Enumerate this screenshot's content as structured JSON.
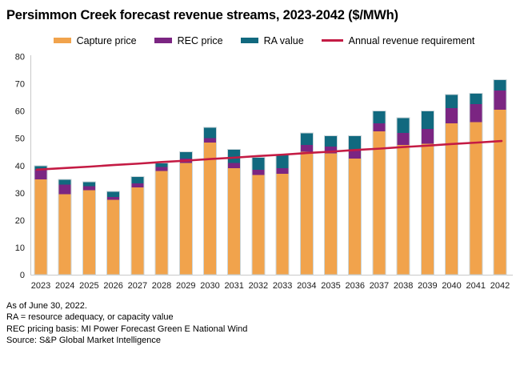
{
  "title": "Persimmon Creek forecast revenue streams, 2023-2042 ($/MWh)",
  "legend": {
    "items": [
      {
        "label": "Capture price",
        "color": "#F1A34C",
        "type": "box"
      },
      {
        "label": "REC price",
        "color": "#7B2582",
        "type": "box"
      },
      {
        "label": "RA value",
        "color": "#11697F",
        "type": "box"
      },
      {
        "label": "Annual revenue requirement",
        "color": "#C41B44",
        "type": "line"
      }
    ]
  },
  "chart_data": {
    "type": "bar",
    "subtype": "stacked-bars-with-line-overlay",
    "title": "Persimmon Creek forecast revenue streams, 2023-2042 ($/MWh)",
    "xlabel": "",
    "ylabel": "",
    "ylim": [
      0,
      80
    ],
    "yticks": [
      0,
      10,
      20,
      30,
      40,
      50,
      60,
      70,
      80
    ],
    "grid": false,
    "legend_position": "top",
    "categories": [
      "2023",
      "2024",
      "2025",
      "2026",
      "2027",
      "2028",
      "2029",
      "2030",
      "2031",
      "2032",
      "2033",
      "2034",
      "2035",
      "2036",
      "2037",
      "2038",
      "2039",
      "2040",
      "2041",
      "2042"
    ],
    "series": [
      {
        "name": "Capture price",
        "color": "#F1A34C",
        "values": [
          35,
          29.5,
          31,
          27.5,
          32,
          38,
          41,
          48.5,
          39,
          36.5,
          37,
          45,
          44.5,
          42.5,
          52.5,
          47.5,
          48,
          55.5,
          56,
          60.5
        ]
      },
      {
        "name": "REC price",
        "color": "#7B2582",
        "values": [
          3.5,
          3.5,
          1.5,
          1,
          1.5,
          1.5,
          1.5,
          1.5,
          2,
          2,
          2,
          2.5,
          2.5,
          3,
          3,
          4.5,
          5.5,
          5.5,
          6.5,
          7
        ]
      },
      {
        "name": "RA value",
        "color": "#11697F",
        "values": [
          1.5,
          2,
          1.5,
          2,
          2.5,
          1.5,
          2.5,
          4,
          5,
          4.5,
          5,
          4.5,
          4,
          5.5,
          4.5,
          5.5,
          6.5,
          5,
          4,
          4
        ]
      }
    ],
    "line_series": {
      "name": "Annual revenue requirement",
      "color": "#C41B44",
      "values": [
        38.5,
        39.1,
        39.6,
        40.2,
        40.7,
        41.3,
        41.8,
        42.4,
        42.9,
        43.5,
        44.0,
        44.6,
        45.1,
        45.7,
        46.2,
        46.8,
        47.3,
        47.9,
        48.4,
        49.0
      ]
    }
  },
  "footnotes": [
    "As of June 30, 2022.",
    "RA = resource adequacy, or capacity value",
    "REC pricing basis: MI Power Forecast Green E National Wind",
    "Source: S&P Global Market Intelligence"
  ],
  "colors": {
    "axis": "#C9C9C9",
    "bar_outline": "#CBD6DA",
    "text": "#000000",
    "background": "#FFFFFF"
  }
}
